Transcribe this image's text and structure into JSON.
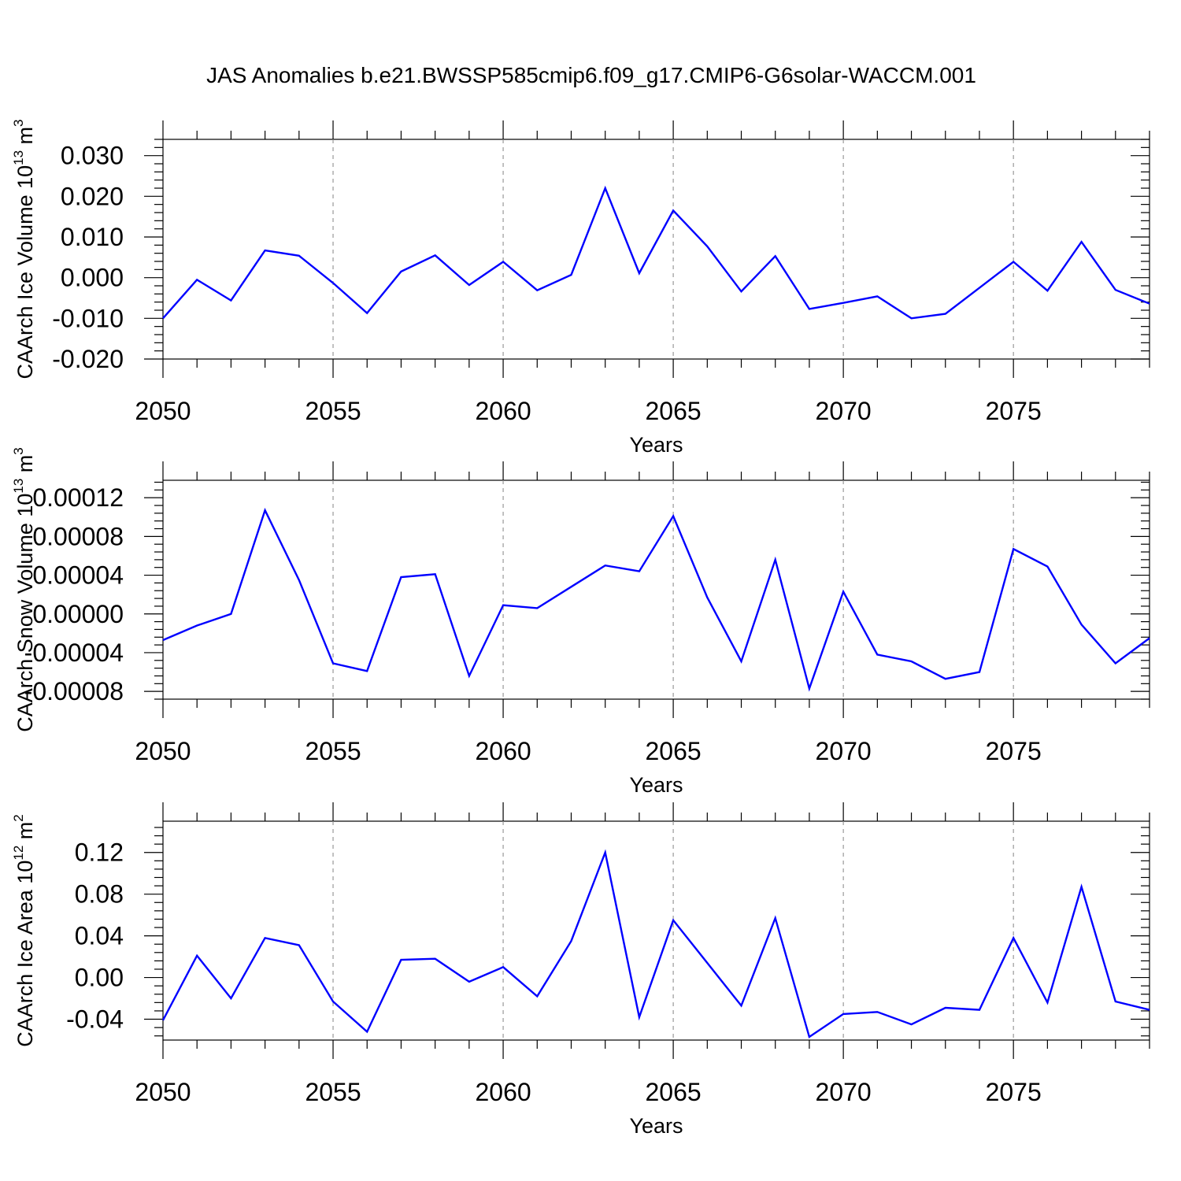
{
  "title": "JAS Anomalies b.e21.BWSSP585cmip6.f09_g17.CMIP6-G6solar-WACCM.001",
  "colors": {
    "series": "#0000ff",
    "grid": "#999999",
    "frame": "#000000"
  },
  "chart_data": [
    {
      "type": "line",
      "xlabel": "Years",
      "ylabel_main": "CAArch Ice Volume 10",
      "ylabel_exp": "13",
      "ylabel_unit": "m",
      "ylabel_unit_exp": "3",
      "xlim": [
        2050,
        2079
      ],
      "ylim": [
        -0.02,
        0.034
      ],
      "grid": "vertical dashed at major x ticks",
      "xticks": [
        "2050",
        "2055",
        "2060",
        "2065",
        "2070",
        "2075"
      ],
      "yticks": [
        "-0.020",
        "-0.010",
        "0.000",
        "0.010",
        "0.020",
        "0.030"
      ],
      "x": [
        2050,
        2051,
        2052,
        2053,
        2054,
        2055,
        2056,
        2057,
        2058,
        2059,
        2060,
        2061,
        2062,
        2063,
        2064,
        2065,
        2066,
        2067,
        2068,
        2069,
        2070,
        2071,
        2072,
        2073,
        2074,
        2075,
        2076,
        2077,
        2078,
        2079
      ],
      "values": [
        -0.01,
        -0.0005,
        -0.0056,
        0.0067,
        0.0054,
        -0.0013,
        -0.0087,
        0.0015,
        0.0055,
        -0.0018,
        0.0039,
        -0.0031,
        0.0007,
        0.022,
        0.0011,
        0.0165,
        0.0077,
        -0.0034,
        0.0053,
        -0.0077,
        -0.0062,
        -0.0046,
        -0.01,
        -0.0089,
        -0.0025,
        0.0039,
        -0.0032,
        0.0088,
        -0.003,
        -0.0064
      ]
    },
    {
      "type": "line",
      "xlabel": "Years",
      "ylabel_main": "CAArch Snow Volume 10",
      "ylabel_exp": "13",
      "ylabel_unit": "m",
      "ylabel_unit_exp": "3",
      "xlim": [
        2050,
        2079
      ],
      "ylim": [
        -8.8e-05,
        0.000138
      ],
      "grid": "vertical dashed at major x ticks",
      "xticks": [
        "2050",
        "2055",
        "2060",
        "2065",
        "2070",
        "2075"
      ],
      "yticks": [
        "-0.00008",
        "-0.00004",
        "0.00000",
        "0.00004",
        "0.00008",
        "0.00012"
      ],
      "x": [
        2050,
        2051,
        2052,
        2053,
        2054,
        2055,
        2056,
        2057,
        2058,
        2059,
        2060,
        2061,
        2062,
        2063,
        2064,
        2065,
        2066,
        2067,
        2068,
        2069,
        2070,
        2071,
        2072,
        2073,
        2074,
        2075,
        2076,
        2077,
        2078,
        2079
      ],
      "values": [
        -2.7e-05,
        -1.2e-05,
        0.0,
        0.000107,
        3.5e-05,
        -5.1e-05,
        -5.9e-05,
        3.8e-05,
        4.1e-05,
        -6.4e-05,
        9e-06,
        6e-06,
        2.8e-05,
        5e-05,
        4.4e-05,
        0.000101,
        1.7e-05,
        -4.9e-05,
        5.6e-05,
        -7.7e-05,
        2.3e-05,
        -4.2e-05,
        -4.9e-05,
        -6.7e-05,
        -6e-05,
        6.7e-05,
        4.9e-05,
        -1.1e-05,
        -5.1e-05,
        -2.5e-05
      ]
    },
    {
      "type": "line",
      "xlabel": "Years",
      "ylabel_main": "CAArch Ice Area 10",
      "ylabel_exp": "12",
      "ylabel_unit": "m",
      "ylabel_unit_exp": "2",
      "xlim": [
        2050,
        2079
      ],
      "ylim": [
        -0.06,
        0.15
      ],
      "grid": "vertical dashed at major x ticks",
      "xticks": [
        "2050",
        "2055",
        "2060",
        "2065",
        "2070",
        "2075"
      ],
      "yticks": [
        "-0.04",
        "0.00",
        "0.04",
        "0.08",
        "0.12"
      ],
      "x": [
        2050,
        2051,
        2052,
        2053,
        2054,
        2055,
        2056,
        2057,
        2058,
        2059,
        2060,
        2061,
        2062,
        2063,
        2064,
        2065,
        2066,
        2067,
        2068,
        2069,
        2070,
        2071,
        2072,
        2073,
        2074,
        2075,
        2076,
        2077,
        2078,
        2079
      ],
      "values": [
        -0.041,
        0.021,
        -0.02,
        0.038,
        0.031,
        -0.023,
        -0.052,
        0.017,
        0.018,
        -0.004,
        0.01,
        -0.018,
        0.035,
        0.12,
        -0.038,
        0.055,
        0.014,
        -0.027,
        0.057,
        -0.057,
        -0.035,
        -0.033,
        -0.045,
        -0.029,
        -0.031,
        0.038,
        -0.024,
        0.087,
        -0.023,
        -0.031
      ]
    }
  ]
}
